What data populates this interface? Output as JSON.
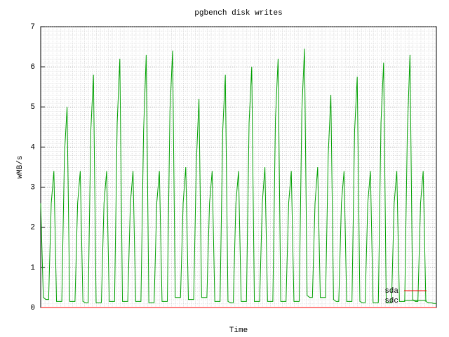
{
  "chart_data": {
    "type": "line",
    "title": "pgbench disk writes",
    "xlabel": "Time",
    "ylabel": "wMB/s",
    "ylim": [
      0,
      7
    ],
    "yticks": [
      0,
      1,
      2,
      3,
      4,
      5,
      6,
      7
    ],
    "grid": true,
    "legend": "lower right",
    "series": [
      {
        "name": "sda",
        "color": "#ff0000",
        "values": [
          0,
          0,
          0,
          0,
          0,
          0,
          0,
          0,
          0,
          0,
          0,
          0,
          0,
          0,
          0,
          0,
          0,
          0,
          0,
          0,
          0,
          0,
          0,
          0,
          0,
          0,
          0,
          0,
          0,
          0,
          0,
          0,
          0,
          0,
          0,
          0,
          0,
          0,
          0,
          0,
          0,
          0,
          0,
          0,
          0,
          0,
          0,
          0,
          0,
          0,
          0,
          0,
          0,
          0,
          0,
          0,
          0,
          0,
          0,
          0,
          0,
          0,
          0,
          0,
          0,
          0,
          0,
          0,
          0,
          0,
          0,
          0,
          0,
          0,
          0,
          0,
          0,
          0,
          0,
          0,
          0,
          0,
          0,
          0,
          0,
          0,
          0,
          0,
          0,
          0,
          0,
          0,
          0,
          0,
          0,
          0,
          0,
          0,
          0,
          0,
          0,
          0,
          0,
          0,
          0,
          0,
          0,
          0,
          0,
          0,
          0,
          0,
          0,
          0,
          0,
          0,
          0,
          0,
          0,
          0,
          0,
          0,
          0,
          0,
          0,
          0,
          0,
          0,
          0,
          0,
          0,
          0,
          0,
          0,
          0,
          0,
          0,
          0,
          0,
          0,
          0,
          0,
          0,
          0,
          0,
          0,
          0,
          0,
          0,
          0,
          0
        ]
      },
      {
        "name": "sdc",
        "color": "#00a000",
        "values": [
          2.6,
          0.25,
          0.2,
          0.2,
          2.6,
          3.4,
          0.15,
          0.15,
          0.15,
          3.8,
          5.0,
          0.15,
          0.15,
          0.15,
          2.6,
          3.4,
          0.15,
          0.12,
          0.12,
          4.4,
          5.8,
          0.12,
          0.12,
          0.12,
          2.6,
          3.4,
          0.15,
          0.15,
          0.15,
          4.6,
          6.2,
          0.15,
          0.15,
          0.15,
          2.6,
          3.4,
          0.15,
          0.15,
          0.15,
          4.4,
          6.3,
          0.12,
          0.12,
          0.12,
          2.6,
          3.4,
          0.15,
          0.15,
          0.15,
          4.9,
          6.4,
          0.25,
          0.25,
          0.25,
          2.6,
          3.5,
          0.2,
          0.2,
          0.2,
          3.6,
          5.2,
          0.25,
          0.25,
          0.25,
          2.6,
          3.4,
          0.15,
          0.15,
          0.15,
          4.4,
          5.8,
          0.15,
          0.12,
          0.12,
          2.6,
          3.4,
          0.15,
          0.15,
          0.15,
          4.6,
          6.0,
          0.15,
          0.15,
          0.15,
          2.6,
          3.5,
          0.15,
          0.15,
          0.15,
          4.7,
          6.2,
          0.15,
          0.15,
          0.15,
          2.6,
          3.4,
          0.15,
          0.15,
          0.15,
          4.9,
          6.45,
          0.3,
          0.25,
          0.25,
          2.6,
          3.5,
          0.25,
          0.25,
          0.25,
          3.8,
          5.3,
          0.2,
          0.15,
          0.15,
          2.6,
          3.4,
          0.15,
          0.15,
          0.15,
          4.4,
          5.75,
          0.15,
          0.12,
          0.12,
          2.6,
          3.4,
          0.12,
          0.12,
          0.12,
          4.6,
          6.1,
          0.12,
          0.12,
          0.12,
          2.6,
          3.4,
          0.15,
          0.15,
          0.15,
          4.4,
          6.3,
          0.2,
          0.15,
          0.15,
          2.6,
          3.4,
          0.15,
          0.12,
          0.12,
          0.1,
          0.1
        ]
      }
    ]
  }
}
